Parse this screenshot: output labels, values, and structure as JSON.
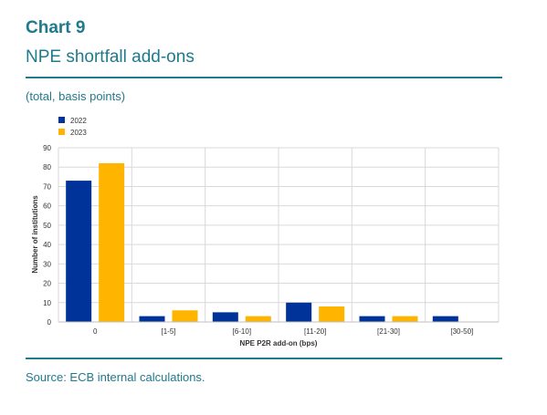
{
  "header": {
    "chart_number": "Chart 9",
    "title": "NPE shortfall add-ons",
    "subtitle": "(total, basis points)"
  },
  "footer": {
    "source": "Source: ECB internal calculations."
  },
  "chart_data": {
    "type": "bar",
    "categories": [
      "0",
      "[1-5]",
      "[6-10]",
      "[11-20]",
      "[21-30]",
      "[30-50]"
    ],
    "series": [
      {
        "name": "2022",
        "color": "#003399",
        "values": [
          73,
          3,
          5,
          10,
          3,
          3
        ]
      },
      {
        "name": "2023",
        "color": "#ffb400",
        "values": [
          82,
          6,
          3,
          8,
          3,
          0
        ]
      }
    ],
    "xlabel": "NPE P2R add-on (bps)",
    "ylabel": "Number of institutions",
    "ylim": [
      0,
      90
    ],
    "yticks": [
      0,
      10,
      20,
      30,
      40,
      50,
      60,
      70,
      80,
      90
    ],
    "grid": true,
    "legend_position": "top-left"
  }
}
